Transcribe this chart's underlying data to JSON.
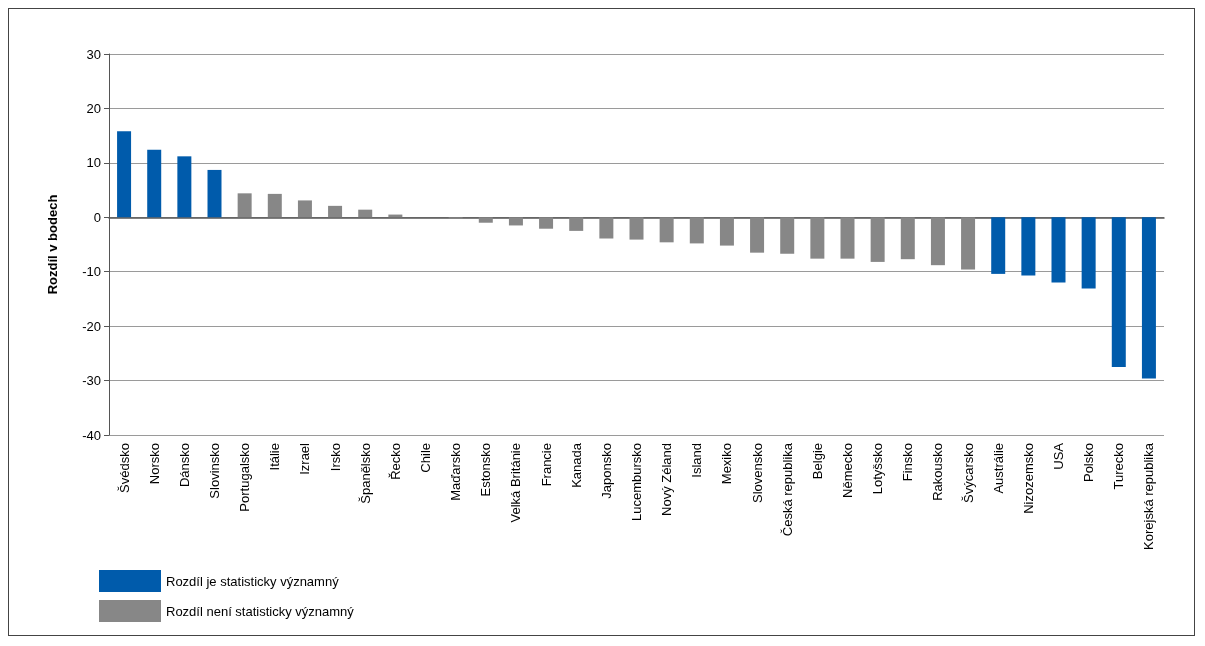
{
  "chart_data": {
    "type": "bar",
    "ylabel": "Rozdíl v bodech",
    "categories": [
      "Švédsko",
      "Norsko",
      "Dánsko",
      "Slovinsko",
      "Portugalsko",
      "Itálie",
      "Izrael",
      "Irsko",
      "Španělsko",
      "Řecko",
      "Chile",
      "Maďarsko",
      "Estonsko",
      "Velká Británie",
      "Francie",
      "Kanada",
      "Japonsko",
      "Lucembursko",
      "Nový Zéland",
      "Island",
      "Mexiko",
      "Slovensko",
      "Česká republika",
      "Belgie",
      "Německo",
      "Lotyšsko",
      "Finsko",
      "Rakousko",
      "Švýcarsko",
      "Austrálie",
      "Nizozemsko",
      "USA",
      "Polsko",
      "Turecko",
      "Korejská republika"
    ],
    "series": [
      {
        "name": "Rozdíl je statisticky významný",
        "color": "#005bab",
        "values": [
          15.8,
          12.4,
          11.2,
          8.7,
          null,
          null,
          null,
          null,
          null,
          null,
          null,
          null,
          null,
          null,
          null,
          null,
          null,
          null,
          null,
          null,
          null,
          null,
          null,
          null,
          null,
          null,
          null,
          null,
          null,
          -10.4,
          -10.7,
          -12.0,
          -13.1,
          -27.5,
          -29.6
        ]
      },
      {
        "name": "Rozdíl není statisticky významný",
        "color": "#878787",
        "values": [
          null,
          null,
          null,
          null,
          4.4,
          4.3,
          3.1,
          2.1,
          1.4,
          0.5,
          null,
          -0.3,
          -1.0,
          -1.5,
          -2.1,
          -2.5,
          -3.9,
          -4.1,
          -4.6,
          -4.8,
          -5.2,
          -6.5,
          -6.7,
          -7.6,
          -7.6,
          -8.2,
          -7.7,
          -8.8,
          -9.6,
          null,
          null,
          null,
          null,
          null,
          null
        ]
      }
    ],
    "ylim": [
      -40,
      30
    ],
    "yticks": [
      -40,
      -30,
      -20,
      -10,
      0,
      10,
      20,
      30
    ],
    "grid": "y",
    "legend": "bottom left"
  }
}
